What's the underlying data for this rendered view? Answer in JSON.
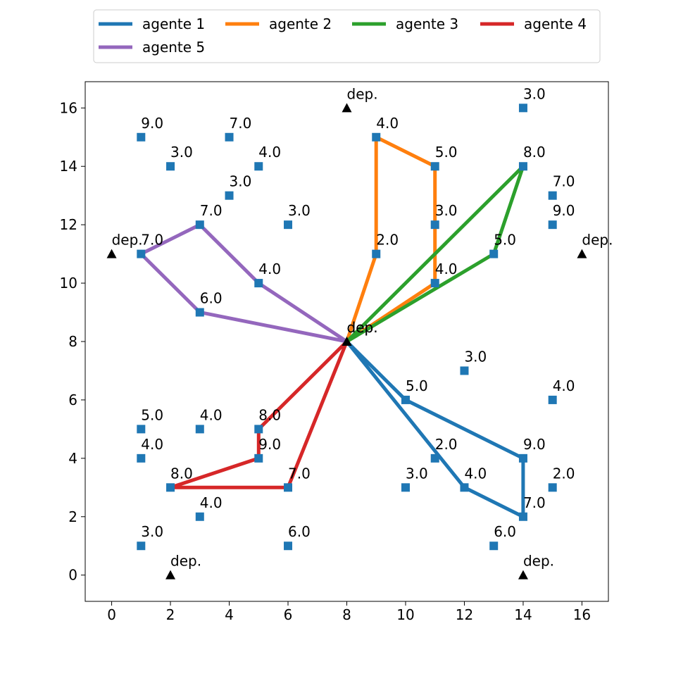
{
  "chart_data": {
    "type": "scatter",
    "xlim": [
      -0.9,
      16.9
    ],
    "ylim": [
      -0.9,
      16.9
    ],
    "x_ticks": [
      0,
      2,
      4,
      6,
      8,
      10,
      12,
      14,
      16
    ],
    "y_ticks": [
      0,
      2,
      4,
      6,
      8,
      10,
      12,
      14,
      16
    ],
    "grid": false,
    "legend_position": "top-center, outside plot, 4 columns",
    "marker_color": "#1f77b4",
    "depot_color": "#000000",
    "customers": [
      {
        "x": 1,
        "y": 15,
        "label": "9.0"
      },
      {
        "x": 2,
        "y": 14,
        "label": "3.0"
      },
      {
        "x": 4,
        "y": 15,
        "label": "7.0"
      },
      {
        "x": 5,
        "y": 14,
        "label": "4.0"
      },
      {
        "x": 4,
        "y": 13,
        "label": "3.0"
      },
      {
        "x": 3,
        "y": 12,
        "label": "7.0"
      },
      {
        "x": 6,
        "y": 12,
        "label": "3.0"
      },
      {
        "x": 1,
        "y": 11,
        "label": "7.0"
      },
      {
        "x": 5,
        "y": 10,
        "label": "4.0"
      },
      {
        "x": 3,
        "y": 9,
        "label": "6.0"
      },
      {
        "x": 9,
        "y": 15,
        "label": "4.0"
      },
      {
        "x": 11,
        "y": 14,
        "label": "5.0"
      },
      {
        "x": 11,
        "y": 12,
        "label": "3.0"
      },
      {
        "x": 9,
        "y": 11,
        "label": "2.0"
      },
      {
        "x": 11,
        "y": 10,
        "label": "4.0"
      },
      {
        "x": 14,
        "y": 16,
        "label": "3.0"
      },
      {
        "x": 14,
        "y": 14,
        "label": "8.0"
      },
      {
        "x": 15,
        "y": 13,
        "label": "7.0"
      },
      {
        "x": 15,
        "y": 12,
        "label": "9.0"
      },
      {
        "x": 13,
        "y": 11,
        "label": "5.0"
      },
      {
        "x": 12,
        "y": 7,
        "label": "3.0"
      },
      {
        "x": 10,
        "y": 6,
        "label": "5.0"
      },
      {
        "x": 15,
        "y": 6,
        "label": "4.0"
      },
      {
        "x": 11,
        "y": 4,
        "label": "2.0"
      },
      {
        "x": 14,
        "y": 4,
        "label": "9.0"
      },
      {
        "x": 10,
        "y": 3,
        "label": "3.0"
      },
      {
        "x": 12,
        "y": 3,
        "label": "4.0"
      },
      {
        "x": 15,
        "y": 3,
        "label": "2.0"
      },
      {
        "x": 14,
        "y": 2,
        "label": "7.0"
      },
      {
        "x": 13,
        "y": 1,
        "label": "6.0"
      },
      {
        "x": 1,
        "y": 5,
        "label": "5.0"
      },
      {
        "x": 3,
        "y": 5,
        "label": "4.0"
      },
      {
        "x": 5,
        "y": 5,
        "label": "8.0"
      },
      {
        "x": 1,
        "y": 4,
        "label": "4.0"
      },
      {
        "x": 5,
        "y": 4,
        "label": "9.0"
      },
      {
        "x": 2,
        "y": 3,
        "label": "8.0"
      },
      {
        "x": 6,
        "y": 3,
        "label": "7.0"
      },
      {
        "x": 3,
        "y": 2,
        "label": "4.0"
      },
      {
        "x": 1,
        "y": 1,
        "label": "3.0"
      },
      {
        "x": 6,
        "y": 1,
        "label": "6.0"
      }
    ],
    "depots": [
      {
        "x": 8,
        "y": 16,
        "label": "dep."
      },
      {
        "x": 0,
        "y": 11,
        "label": "dep."
      },
      {
        "x": 16,
        "y": 11,
        "label": "dep."
      },
      {
        "x": 8,
        "y": 8,
        "label": "dep."
      },
      {
        "x": 8,
        "y": 8,
        "label": "dep."
      },
      {
        "x": 2,
        "y": 0,
        "label": "dep."
      },
      {
        "x": 14,
        "y": 0,
        "label": "dep."
      }
    ],
    "series": [
      {
        "name": "agente 1",
        "color": "#1f77b4",
        "points": [
          [
            8,
            8
          ],
          [
            10,
            6
          ],
          [
            14,
            4
          ],
          [
            14,
            2
          ],
          [
            12,
            3
          ],
          [
            8,
            8
          ]
        ]
      },
      {
        "name": "agente 2",
        "color": "#ff7f0e",
        "points": [
          [
            8,
            8
          ],
          [
            9,
            11
          ],
          [
            9,
            15
          ],
          [
            11,
            14
          ],
          [
            11,
            10
          ],
          [
            8,
            8
          ]
        ]
      },
      {
        "name": "agente 3",
        "color": "#2ca02c",
        "points": [
          [
            8,
            8
          ],
          [
            14,
            14
          ],
          [
            13,
            11
          ],
          [
            8,
            8
          ]
        ]
      },
      {
        "name": "agente 4",
        "color": "#d62728",
        "points": [
          [
            8,
            8
          ],
          [
            5,
            5
          ],
          [
            5,
            4
          ],
          [
            2,
            3
          ],
          [
            6,
            3
          ],
          [
            8,
            8
          ]
        ]
      },
      {
        "name": "agente 5",
        "color": "#9467bd",
        "points": [
          [
            8,
            8
          ],
          [
            5,
            10
          ],
          [
            3,
            12
          ],
          [
            1,
            11
          ],
          [
            3,
            9
          ],
          [
            8,
            8
          ]
        ]
      }
    ]
  }
}
